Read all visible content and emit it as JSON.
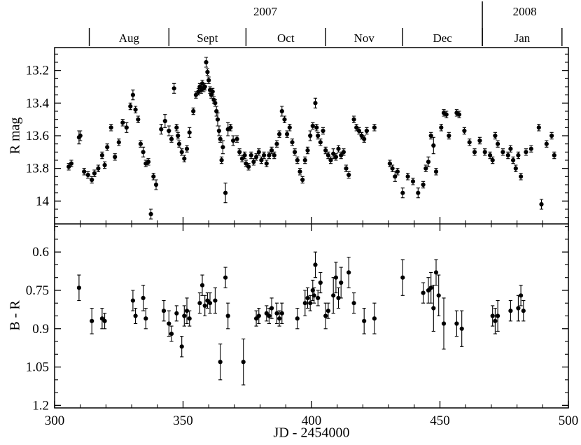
{
  "figure": {
    "xlabel": "JD - 2454000",
    "background": "#ffffff",
    "ink": "#000000"
  },
  "top_axis": {
    "years": [
      {
        "label": "2007",
        "jd": 382
      },
      {
        "label": "2008",
        "jd": 483
      }
    ],
    "year_divider_jd": 466.5,
    "months": [
      {
        "label": "Aug",
        "start": 313.5,
        "end": 344.5
      },
      {
        "label": "Sept",
        "start": 344.5,
        "end": 374.5
      },
      {
        "label": "Oct",
        "start": 374.5,
        "end": 405.5
      },
      {
        "label": "Nov",
        "start": 405.5,
        "end": 435.5
      },
      {
        "label": "Dec",
        "start": 435.5,
        "end": 466.5
      },
      {
        "label": "Jan",
        "start": 466.5,
        "end": 497.5
      }
    ]
  },
  "chart_data": [
    {
      "type": "scatter",
      "panel": "top",
      "title": "R-band light curve",
      "xlabel": "JD - 2454000",
      "ylabel": "R mag",
      "xlim": [
        300,
        500
      ],
      "ylim": [
        13.06,
        14.14
      ],
      "y_inverted": true,
      "xticks": [
        300,
        350,
        400,
        450,
        500
      ],
      "x_minor_step": 10,
      "yticks": [
        13.2,
        13.4,
        13.6,
        13.8,
        14.0
      ],
      "ytick_labels": [
        "13.2",
        "13.4",
        "13.6",
        "13.8",
        "14"
      ],
      "y_minor_step": 0.05,
      "marker": "filled-circle",
      "error_bars": true,
      "points": [
        [
          305.5,
          13.79,
          0.02
        ],
        [
          306.5,
          13.77,
          0.02
        ],
        [
          309.5,
          13.61,
          0.04
        ],
        [
          310.0,
          13.6,
          0.03
        ],
        [
          311.5,
          13.82,
          0.02
        ],
        [
          313.0,
          13.84,
          0.02
        ],
        [
          314.5,
          13.87,
          0.02
        ],
        [
          315.5,
          13.83,
          0.02
        ],
        [
          317.0,
          13.8,
          0.02
        ],
        [
          318.5,
          13.72,
          0.02
        ],
        [
          319.5,
          13.78,
          0.02
        ],
        [
          320.5,
          13.67,
          0.02
        ],
        [
          322.0,
          13.55,
          0.02
        ],
        [
          323.5,
          13.73,
          0.02
        ],
        [
          325.0,
          13.64,
          0.02
        ],
        [
          326.5,
          13.52,
          0.02
        ],
        [
          328.0,
          13.55,
          0.03
        ],
        [
          329.5,
          13.42,
          0.02
        ],
        [
          330.5,
          13.35,
          0.03
        ],
        [
          331.5,
          13.44,
          0.02
        ],
        [
          332.5,
          13.5,
          0.02
        ],
        [
          333.5,
          13.65,
          0.02
        ],
        [
          334.5,
          13.7,
          0.03
        ],
        [
          335.5,
          13.77,
          0.02
        ],
        [
          336.5,
          13.76,
          0.02
        ],
        [
          337.5,
          14.08,
          0.03
        ],
        [
          338.5,
          13.85,
          0.02
        ],
        [
          339.5,
          13.9,
          0.03
        ],
        [
          341.5,
          13.56,
          0.03
        ],
        [
          343.0,
          13.51,
          0.04
        ],
        [
          344.5,
          13.57,
          0.03
        ],
        [
          345.5,
          13.62,
          0.02
        ],
        [
          346.5,
          13.31,
          0.03
        ],
        [
          347.5,
          13.55,
          0.02
        ],
        [
          348.0,
          13.6,
          0.02
        ],
        [
          348.5,
          13.65,
          0.02
        ],
        [
          349.5,
          13.7,
          0.02
        ],
        [
          350.5,
          13.74,
          0.02
        ],
        [
          351.5,
          13.68,
          0.02
        ],
        [
          352.5,
          13.58,
          0.03
        ],
        [
          354.0,
          13.45,
          0.02
        ],
        [
          355.0,
          13.35,
          0.02
        ],
        [
          356.0,
          13.33,
          0.02
        ],
        [
          356.5,
          13.3,
          0.02
        ],
        [
          357.0,
          13.32,
          0.02
        ],
        [
          357.5,
          13.28,
          0.02
        ],
        [
          358.0,
          13.31,
          0.02
        ],
        [
          358.5,
          13.3,
          0.02
        ],
        [
          359.0,
          13.15,
          0.03
        ],
        [
          359.5,
          13.21,
          0.02
        ],
        [
          360.0,
          13.26,
          0.02
        ],
        [
          360.5,
          13.32,
          0.02
        ],
        [
          361.0,
          13.35,
          0.02
        ],
        [
          361.5,
          13.33,
          0.02
        ],
        [
          362.0,
          13.38,
          0.02
        ],
        [
          362.5,
          13.4,
          0.02
        ],
        [
          363.0,
          13.45,
          0.03
        ],
        [
          363.5,
          13.5,
          0.04
        ],
        [
          364.0,
          13.57,
          0.03
        ],
        [
          364.5,
          13.62,
          0.02
        ],
        [
          365.0,
          13.75,
          0.02
        ],
        [
          365.5,
          13.67,
          0.04
        ],
        [
          366.5,
          13.95,
          0.06
        ],
        [
          367.5,
          13.56,
          0.04
        ],
        [
          368.5,
          13.55,
          0.02
        ],
        [
          369.5,
          13.63,
          0.03
        ],
        [
          371.0,
          13.62,
          0.02
        ],
        [
          372.0,
          13.7,
          0.02
        ],
        [
          373.0,
          13.74,
          0.02
        ],
        [
          374.0,
          13.72,
          0.02
        ],
        [
          374.5,
          13.77,
          0.02
        ],
        [
          375.5,
          13.79,
          0.02
        ],
        [
          376.5,
          13.72,
          0.02
        ],
        [
          377.5,
          13.76,
          0.02
        ],
        [
          378.5,
          13.73,
          0.02
        ],
        [
          379.5,
          13.7,
          0.02
        ],
        [
          380.5,
          13.75,
          0.02
        ],
        [
          381.5,
          13.72,
          0.02
        ],
        [
          382.5,
          13.77,
          0.02
        ],
        [
          383.5,
          13.72,
          0.02
        ],
        [
          384.5,
          13.69,
          0.02
        ],
        [
          385.5,
          13.72,
          0.02
        ],
        [
          386.5,
          13.65,
          0.02
        ],
        [
          387.5,
          13.59,
          0.02
        ],
        [
          388.5,
          13.45,
          0.03
        ],
        [
          389.5,
          13.5,
          0.02
        ],
        [
          390.5,
          13.59,
          0.02
        ],
        [
          391.5,
          13.55,
          0.02
        ],
        [
          392.5,
          13.64,
          0.02
        ],
        [
          393.5,
          13.7,
          0.02
        ],
        [
          394.5,
          13.75,
          0.02
        ],
        [
          395.5,
          13.82,
          0.02
        ],
        [
          396.5,
          13.87,
          0.02
        ],
        [
          397.5,
          13.75,
          0.02
        ],
        [
          398.5,
          13.69,
          0.02
        ],
        [
          399.5,
          13.6,
          0.03
        ],
        [
          400.5,
          13.54,
          0.02
        ],
        [
          401.5,
          13.4,
          0.03
        ],
        [
          402.0,
          13.55,
          0.02
        ],
        [
          402.5,
          13.6,
          0.02
        ],
        [
          403.5,
          13.64,
          0.02
        ],
        [
          404.5,
          13.57,
          0.02
        ],
        [
          405.5,
          13.69,
          0.02
        ],
        [
          406.5,
          13.72,
          0.02
        ],
        [
          407.5,
          13.75,
          0.02
        ],
        [
          408.5,
          13.71,
          0.03
        ],
        [
          409.5,
          13.73,
          0.02
        ],
        [
          410.5,
          13.68,
          0.02
        ],
        [
          411.5,
          13.72,
          0.02
        ],
        [
          412.5,
          13.7,
          0.02
        ],
        [
          413.5,
          13.8,
          0.02
        ],
        [
          414.5,
          13.84,
          0.02
        ],
        [
          416.5,
          13.5,
          0.02
        ],
        [
          417.5,
          13.55,
          0.02
        ],
        [
          418.5,
          13.57,
          0.02
        ],
        [
          419.5,
          13.6,
          0.02
        ],
        [
          420.5,
          13.62,
          0.02
        ],
        [
          421.5,
          13.57,
          0.02
        ],
        [
          424.5,
          13.55,
          0.02
        ],
        [
          430.5,
          13.77,
          0.02
        ],
        [
          431.5,
          13.8,
          0.02
        ],
        [
          432.5,
          13.85,
          0.03
        ],
        [
          433.5,
          13.82,
          0.02
        ],
        [
          435.5,
          13.95,
          0.03
        ],
        [
          437.5,
          13.85,
          0.02
        ],
        [
          439.5,
          13.88,
          0.02
        ],
        [
          441.5,
          13.95,
          0.03
        ],
        [
          443.5,
          13.9,
          0.02
        ],
        [
          444.5,
          13.8,
          0.02
        ],
        [
          445.5,
          13.76,
          0.03
        ],
        [
          446.5,
          13.6,
          0.02
        ],
        [
          447.5,
          13.66,
          0.05
        ],
        [
          448.5,
          13.82,
          0.02
        ],
        [
          450.5,
          13.55,
          0.02
        ],
        [
          451.5,
          13.46,
          0.02
        ],
        [
          452.5,
          13.47,
          0.02
        ],
        [
          453.5,
          13.6,
          0.02
        ],
        [
          456.5,
          13.46,
          0.02
        ],
        [
          457.5,
          13.47,
          0.02
        ],
        [
          459.5,
          13.57,
          0.02
        ],
        [
          461.5,
          13.64,
          0.02
        ],
        [
          463.5,
          13.7,
          0.02
        ],
        [
          465.5,
          13.63,
          0.02
        ],
        [
          467.5,
          13.7,
          0.02
        ],
        [
          469.5,
          13.72,
          0.02
        ],
        [
          470.5,
          13.75,
          0.02
        ],
        [
          471.5,
          13.6,
          0.02
        ],
        [
          472.5,
          13.65,
          0.02
        ],
        [
          474.5,
          13.7,
          0.02
        ],
        [
          476.5,
          13.72,
          0.02
        ],
        [
          477.5,
          13.68,
          0.02
        ],
        [
          478.5,
          13.75,
          0.02
        ],
        [
          479.5,
          13.8,
          0.02
        ],
        [
          480.5,
          13.72,
          0.02
        ],
        [
          481.5,
          13.85,
          0.02
        ],
        [
          483.5,
          13.7,
          0.02
        ],
        [
          485.5,
          13.68,
          0.02
        ],
        [
          488.5,
          13.55,
          0.02
        ],
        [
          489.5,
          14.02,
          0.03
        ],
        [
          491.5,
          13.65,
          0.02
        ],
        [
          493.5,
          13.6,
          0.02
        ],
        [
          494.5,
          13.72,
          0.02
        ]
      ]
    },
    {
      "type": "scatter",
      "panel": "bottom",
      "title": "B - R color curve",
      "xlabel": "JD - 2454000",
      "ylabel": "B - R",
      "xlim": [
        300,
        500
      ],
      "ylim": [
        0.49,
        1.21
      ],
      "y_inverted": true,
      "xticks": [
        300,
        350,
        400,
        450,
        500
      ],
      "xtick_labels": [
        "300",
        "350",
        "400",
        "450",
        "500"
      ],
      "x_minor_step": 10,
      "yticks": [
        0.6,
        0.75,
        0.9,
        1.05,
        1.2
      ],
      "ytick_labels": [
        "0.6",
        "0.75",
        "0.9",
        "1.05",
        "1.2"
      ],
      "y_minor_step": 0.05,
      "marker": "filled-circle",
      "error_bars": true,
      "points": [
        [
          309.5,
          0.74,
          0.05
        ],
        [
          314.5,
          0.87,
          0.05
        ],
        [
          318.5,
          0.86,
          0.04
        ],
        [
          319.5,
          0.87,
          0.03
        ],
        [
          330.5,
          0.79,
          0.04
        ],
        [
          331.5,
          0.85,
          0.03
        ],
        [
          334.5,
          0.78,
          0.05
        ],
        [
          335.5,
          0.86,
          0.04
        ],
        [
          342.5,
          0.83,
          0.04
        ],
        [
          344.5,
          0.88,
          0.05
        ],
        [
          345.5,
          0.92,
          0.03
        ],
        [
          347.5,
          0.84,
          0.03
        ],
        [
          349.5,
          0.97,
          0.04
        ],
        [
          350.5,
          0.85,
          0.04
        ],
        [
          351.5,
          0.83,
          0.05
        ],
        [
          352.5,
          0.86,
          0.03
        ],
        [
          356.5,
          0.8,
          0.04
        ],
        [
          357.5,
          0.73,
          0.04
        ],
        [
          358.5,
          0.81,
          0.04
        ],
        [
          359.5,
          0.79,
          0.03
        ],
        [
          360.5,
          0.8,
          0.04
        ],
        [
          362.5,
          0.79,
          0.05
        ],
        [
          364.5,
          1.03,
          0.07
        ],
        [
          366.5,
          0.7,
          0.04
        ],
        [
          367.5,
          0.85,
          0.05
        ],
        [
          373.5,
          1.03,
          0.09
        ],
        [
          378.5,
          0.86,
          0.03
        ],
        [
          379.5,
          0.85,
          0.03
        ],
        [
          382.5,
          0.84,
          0.03
        ],
        [
          383.5,
          0.85,
          0.03
        ],
        [
          384.5,
          0.82,
          0.04
        ],
        [
          386.5,
          0.84,
          0.04
        ],
        [
          387.5,
          0.86,
          0.03
        ],
        [
          388.5,
          0.84,
          0.04
        ],
        [
          394.5,
          0.86,
          0.04
        ],
        [
          397.5,
          0.8,
          0.05
        ],
        [
          398.5,
          0.78,
          0.04
        ],
        [
          399.5,
          0.8,
          0.03
        ],
        [
          400.5,
          0.75,
          0.04
        ],
        [
          401.0,
          0.77,
          0.03
        ],
        [
          401.5,
          0.65,
          0.05
        ],
        [
          402.5,
          0.78,
          0.03
        ],
        [
          403.5,
          0.72,
          0.04
        ],
        [
          405.5,
          0.85,
          0.05
        ],
        [
          406.5,
          0.83,
          0.03
        ],
        [
          408.5,
          0.77,
          0.07
        ],
        [
          409.5,
          0.7,
          0.06
        ],
        [
          410.5,
          0.78,
          0.04
        ],
        [
          411.5,
          0.72,
          0.06
        ],
        [
          414.5,
          0.68,
          0.06
        ],
        [
          416.5,
          0.8,
          0.04
        ],
        [
          420.5,
          0.87,
          0.05
        ],
        [
          424.5,
          0.86,
          0.06
        ],
        [
          435.5,
          0.7,
          0.07
        ],
        [
          443.5,
          0.76,
          0.04
        ],
        [
          445.5,
          0.75,
          0.05
        ],
        [
          446.5,
          0.74,
          0.06
        ],
        [
          447.5,
          0.82,
          0.09
        ],
        [
          448.5,
          0.68,
          0.05
        ],
        [
          449.5,
          0.77,
          0.08
        ],
        [
          451.5,
          0.88,
          0.1
        ],
        [
          456.5,
          0.88,
          0.05
        ],
        [
          458.5,
          0.9,
          0.07
        ],
        [
          470.5,
          0.85,
          0.04
        ],
        [
          471.5,
          0.87,
          0.05
        ],
        [
          472.5,
          0.85,
          0.06
        ],
        [
          477.5,
          0.83,
          0.04
        ],
        [
          480.5,
          0.82,
          0.05
        ],
        [
          481.5,
          0.77,
          0.04
        ],
        [
          482.5,
          0.83,
          0.04
        ]
      ]
    }
  ]
}
